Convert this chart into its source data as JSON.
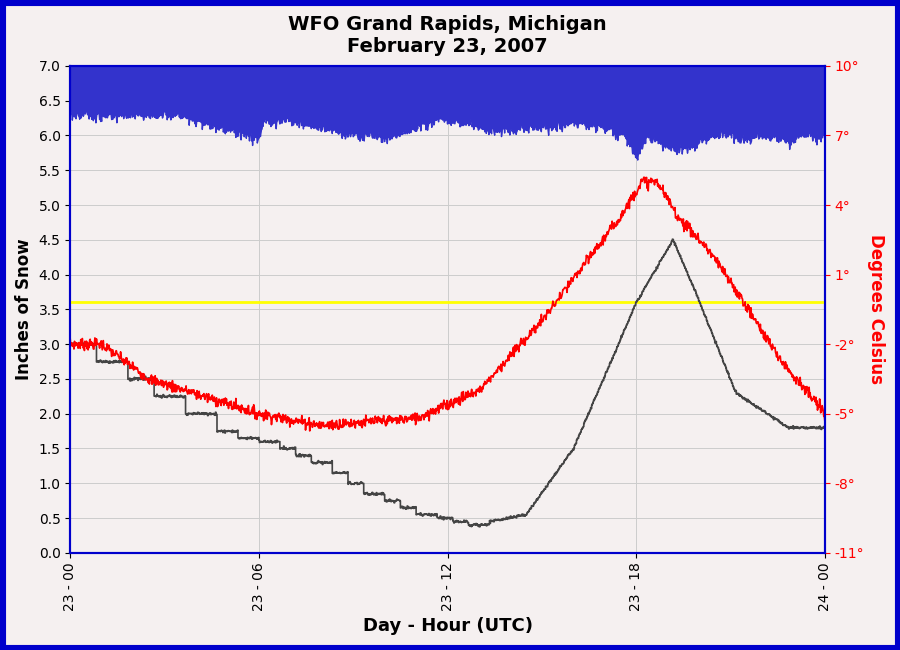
{
  "title_line1": "WFO Grand Rapids, Michigan",
  "title_line2": "February 23, 2007",
  "xlabel": "Day - Hour (UTC)",
  "ylabel_left": "Inches of Snow",
  "ylabel_right": "Degrees Celsius",
  "xlim": [
    0,
    1440
  ],
  "ylim_left": [
    0.0,
    7.0
  ],
  "ylim_right": [
    -11.0,
    10.0
  ],
  "xtick_positions": [
    0,
    360,
    720,
    1080,
    1440
  ],
  "xtick_labels": [
    "23 - 00",
    "23 - 06",
    "23 - 12",
    "23 - 18",
    "24 - 00"
  ],
  "ytick_left": [
    0.0,
    0.5,
    1.0,
    1.5,
    2.0,
    2.5,
    3.0,
    3.5,
    4.0,
    4.5,
    5.0,
    5.5,
    6.0,
    6.5,
    7.0
  ],
  "ytick_right_vals": [
    10,
    7,
    4,
    1,
    -2,
    -5,
    -8,
    -11
  ],
  "ytick_right_labels": [
    "10°",
    "7°",
    "4°",
    "1°",
    "-2°",
    "-5°",
    "-8°",
    "-11°"
  ],
  "yellow_line_y": 3.6,
  "background_color": "#f5f0f0",
  "blue_fill_color": "#3333cc",
  "border_color": "#0000cc",
  "grid_color": "#cccccc",
  "temp_noise_scale": 0.12,
  "snow_noise_scale": 0.01
}
